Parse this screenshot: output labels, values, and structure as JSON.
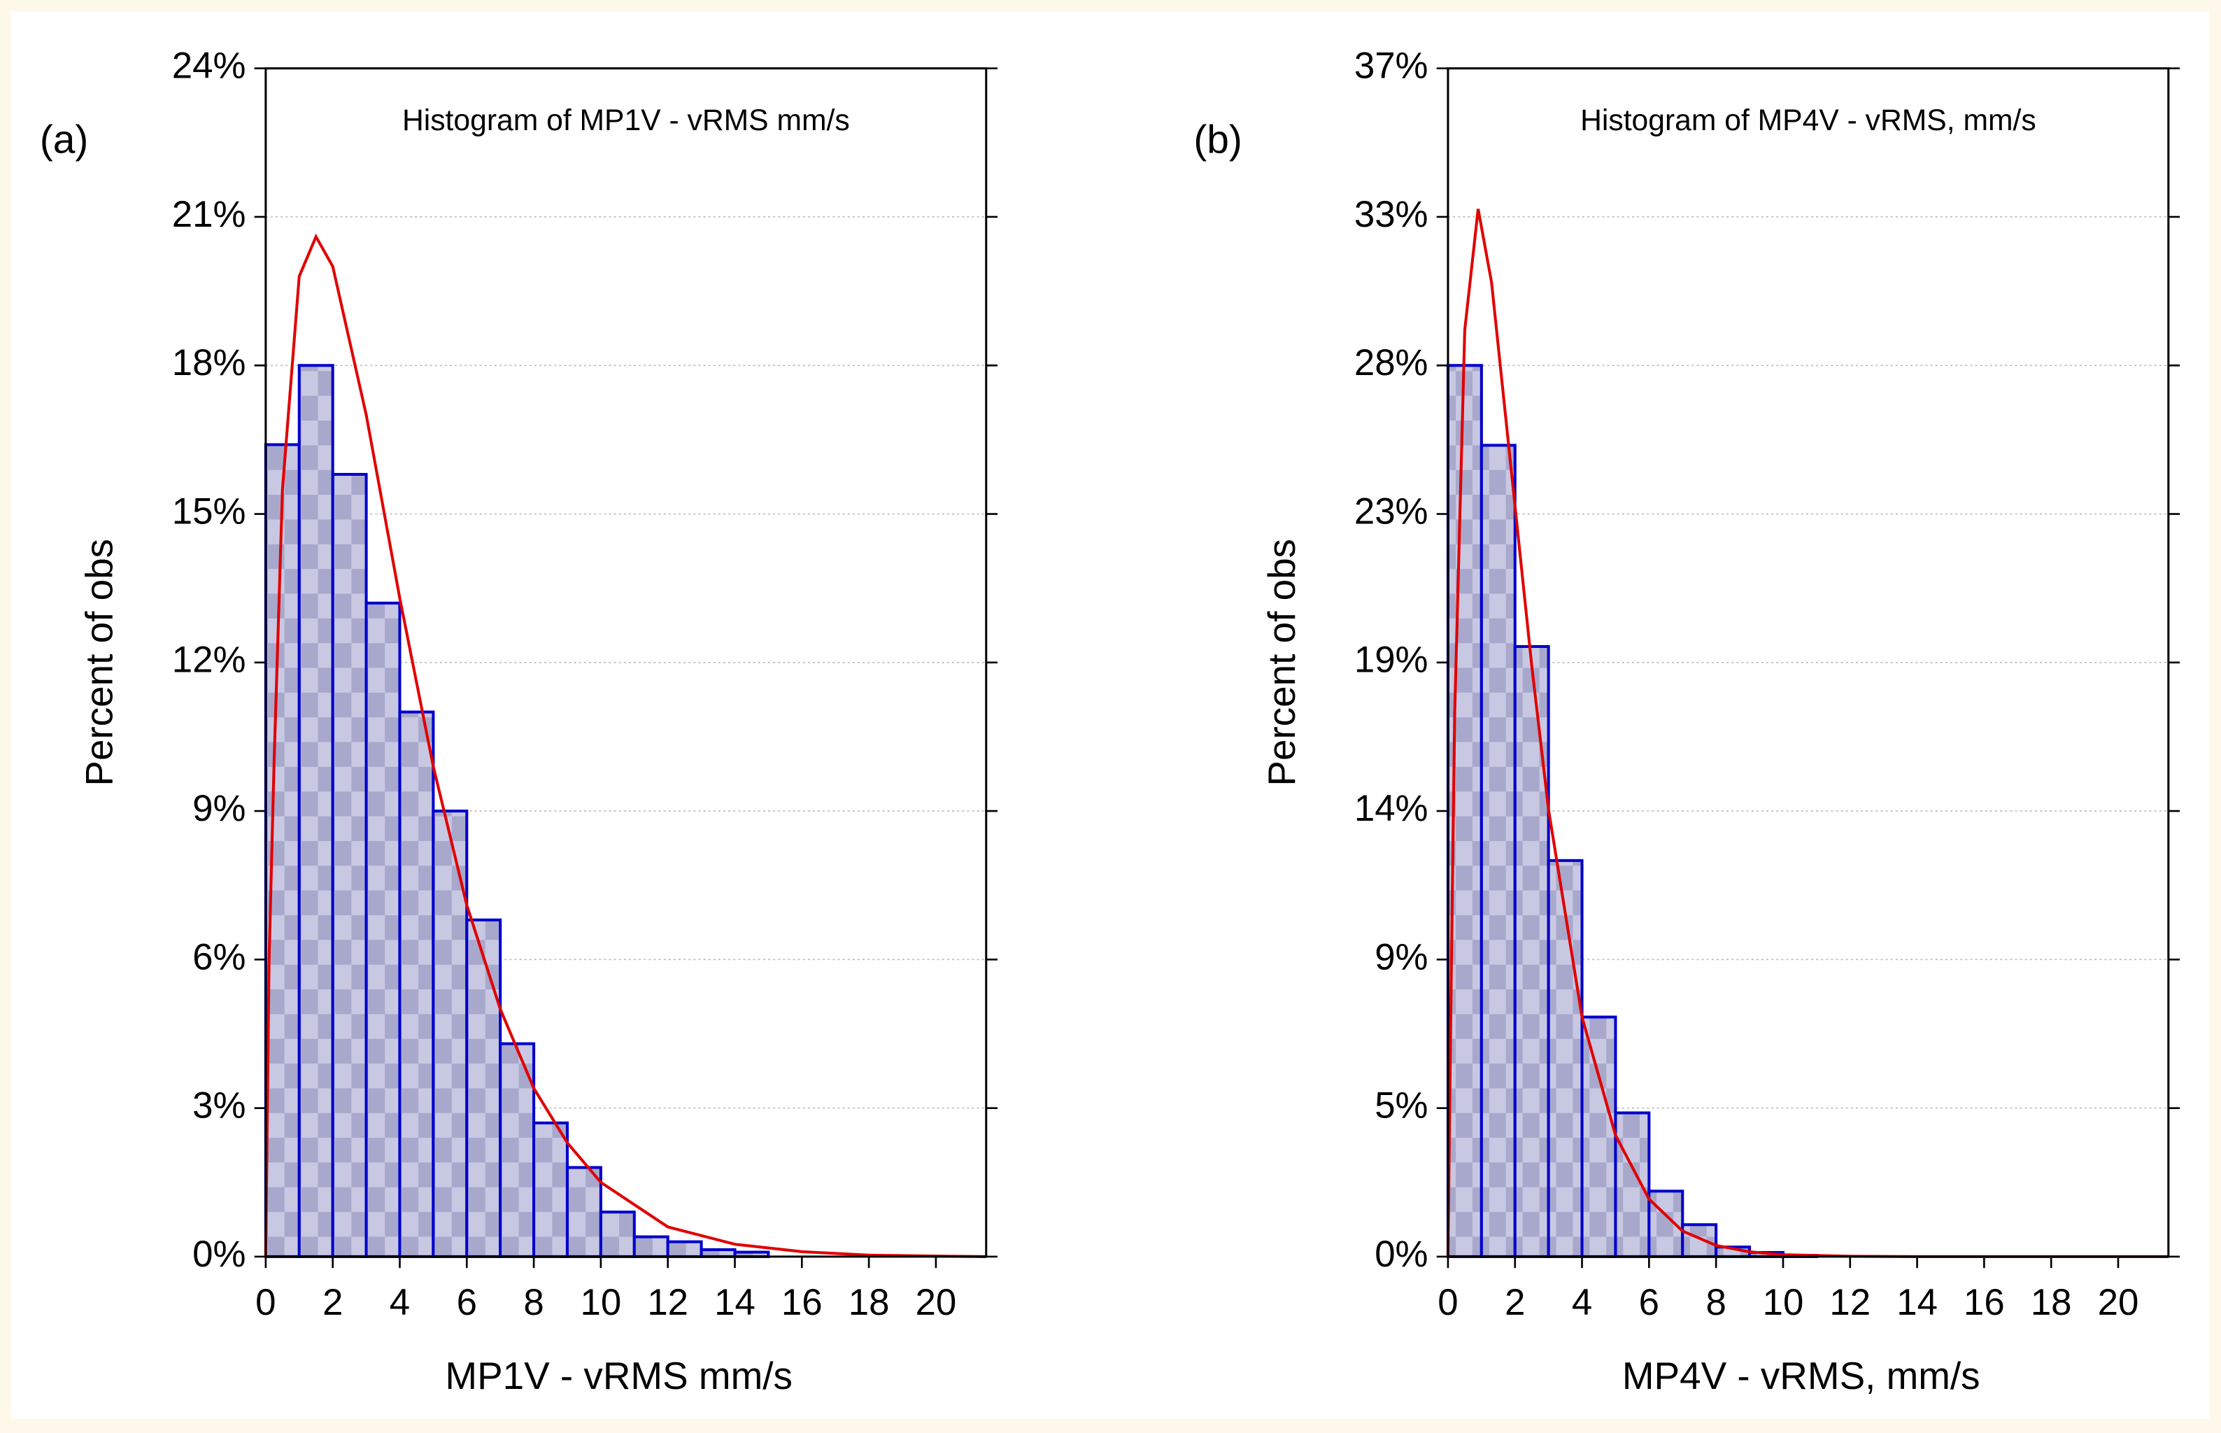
{
  "chart_data": [
    {
      "type": "histogram",
      "panel_label": "(a)",
      "title": "Histogram of MP1V - vRMS  mm/s",
      "x_label": "MP1V - vRMS  mm/s",
      "y_label": "Percent of obs",
      "bins": [
        0,
        1,
        2,
        3,
        4,
        5,
        6,
        7,
        8,
        9,
        10,
        11,
        12,
        13,
        14,
        15
      ],
      "values": [
        16.4,
        18.0,
        15.8,
        13.2,
        11.0,
        9.0,
        6.8,
        4.3,
        2.7,
        1.8,
        0.9,
        0.4,
        0.3,
        0.14,
        0.09
      ],
      "color": "#c8c8e2",
      "edge_color": "#0000cc",
      "curve": {
        "color": "#e00000",
        "x": [
          0,
          0.1,
          0.25,
          0.5,
          1,
          1.5,
          2,
          3,
          4,
          5,
          6,
          7,
          8,
          9,
          10,
          12,
          14,
          16,
          18,
          20,
          21.5
        ],
        "y": [
          0,
          6,
          10,
          15.5,
          19.8,
          20.6,
          20.0,
          17.0,
          13.3,
          9.9,
          7.1,
          5.0,
          3.4,
          2.3,
          1.5,
          0.6,
          0.25,
          0.1,
          0.03,
          0.01,
          0
        ]
      },
      "xlim": [
        0,
        21.5
      ],
      "xticks": [
        0,
        2,
        4,
        6,
        8,
        10,
        12,
        14,
        16,
        18,
        20
      ],
      "ylim": [
        0,
        24
      ],
      "yticks": [
        {
          "value": 0,
          "label": "0%"
        },
        {
          "value": 3,
          "label": "3%"
        },
        {
          "value": 6,
          "label": "6%"
        },
        {
          "value": 9,
          "label": "9%"
        },
        {
          "value": 12,
          "label": "12%"
        },
        {
          "value": 15,
          "label": "15%"
        },
        {
          "value": 18,
          "label": "18%"
        },
        {
          "value": 21,
          "label": "21%"
        },
        {
          "value": 24,
          "label": "24%"
        }
      ],
      "grid": true
    },
    {
      "type": "histogram",
      "panel_label": "(b)",
      "title": "Histogram of MP4V - vRMS, mm/s",
      "x_label": "MP4V - vRMS, mm/s",
      "y_label": "Percent of obs",
      "bins": [
        0,
        1,
        2,
        3,
        4,
        5,
        6,
        7,
        8,
        9,
        10,
        11
      ],
      "values": [
        27.9,
        25.4,
        19.1,
        12.4,
        7.5,
        4.5,
        2.05,
        1.0,
        0.3,
        0.13,
        0.04
      ],
      "color": "#c8c8e2",
      "edge_color": "#0000cc",
      "curve": {
        "color": "#e00000",
        "x": [
          0,
          0.1,
          0.2,
          0.5,
          0.9,
          1.3,
          2,
          2.5,
          3,
          4,
          5,
          6,
          7,
          8,
          9,
          10,
          12,
          14,
          21.5
        ],
        "y": [
          0,
          9,
          17,
          29,
          32.8,
          30.5,
          23.5,
          18.5,
          14,
          7.5,
          3.8,
          1.8,
          0.8,
          0.35,
          0.15,
          0.06,
          0.01,
          0,
          0
        ]
      },
      "xlim": [
        0,
        21.5
      ],
      "xticks": [
        0,
        2,
        4,
        6,
        8,
        10,
        12,
        14,
        16,
        18,
        20
      ],
      "ylim": [
        0,
        37.2
      ],
      "yticks": [
        {
          "value": 0,
          "label": "0%"
        },
        {
          "value": 4.65,
          "label": "5%"
        },
        {
          "value": 9.3,
          "label": "9%"
        },
        {
          "value": 13.95,
          "label": "14%"
        },
        {
          "value": 18.6,
          "label": "19%"
        },
        {
          "value": 23.25,
          "label": "23%"
        },
        {
          "value": 27.9,
          "label": "28%"
        },
        {
          "value": 32.55,
          "label": "33%"
        },
        {
          "value": 37.2,
          "label": "37%"
        }
      ],
      "grid": true
    }
  ]
}
